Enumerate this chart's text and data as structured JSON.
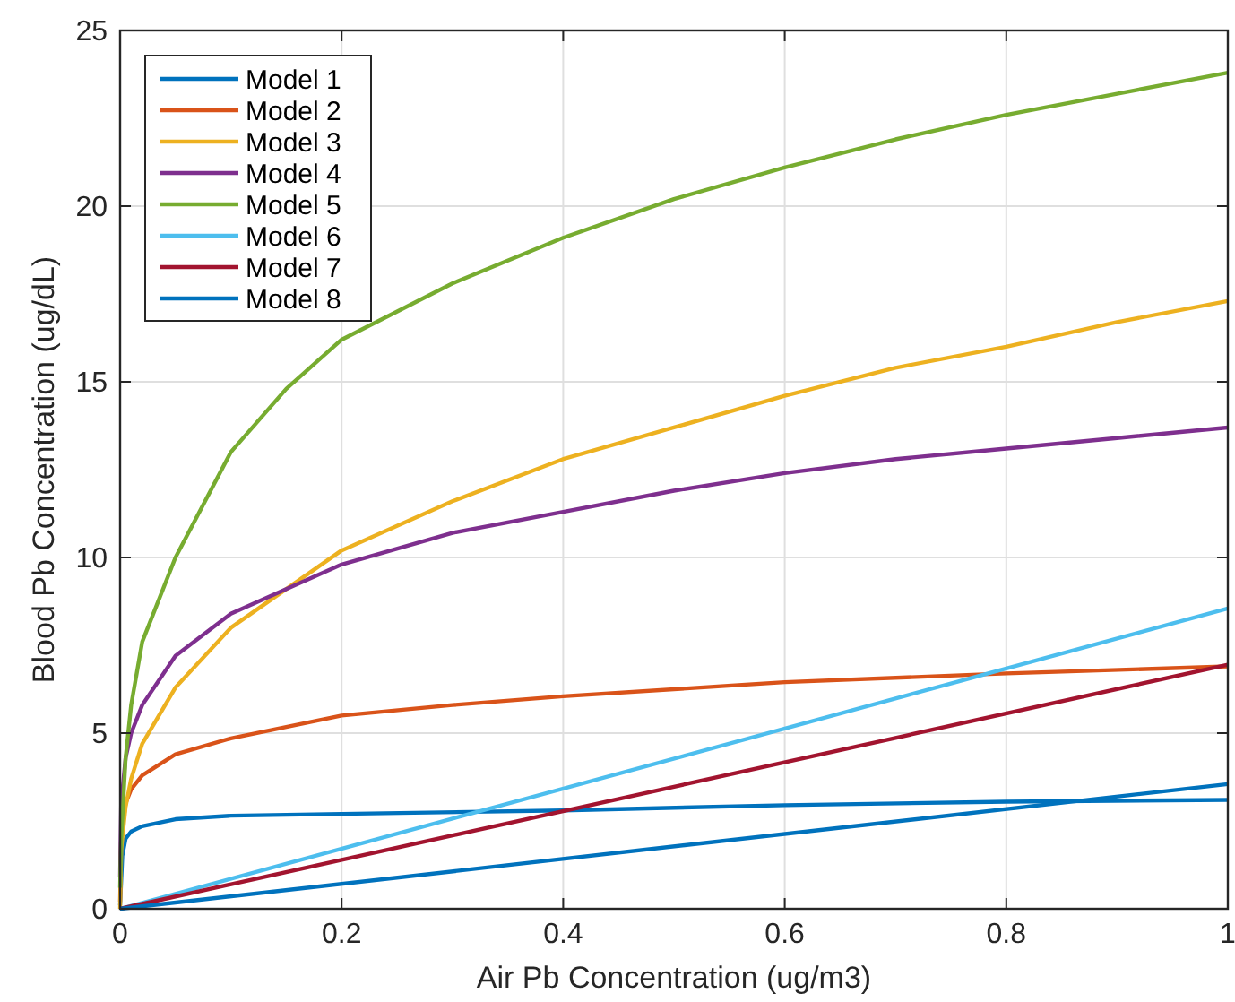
{
  "chart_data": {
    "type": "line",
    "xlabel": "Air Pb Concentration (ug/m3)",
    "ylabel": "Blood Pb Concentration (ug/dL)",
    "xlim": [
      0,
      1
    ],
    "ylim": [
      0,
      25
    ],
    "xticks": [
      0,
      0.2,
      0.4,
      0.6,
      0.8,
      1
    ],
    "yticks": [
      0,
      5,
      10,
      15,
      20,
      25
    ],
    "grid": true,
    "legend": "top left",
    "line_style": "solid",
    "series": [
      {
        "name": "Model 1",
        "color": "#0072bd",
        "x": [
          0,
          0.002,
          0.005,
          0.01,
          0.02,
          0.05,
          0.1,
          0.2,
          0.4,
          0.6,
          0.8,
          1
        ],
        "values": [
          0.1,
          1.5,
          2.0,
          2.2,
          2.35,
          2.55,
          2.65,
          2.7,
          2.8,
          2.95,
          3.05,
          3.1
        ]
      },
      {
        "name": "Model 2",
        "color": "#d95319",
        "x": [
          0,
          0.001,
          0.005,
          0.01,
          0.02,
          0.05,
          0.1,
          0.2,
          0.3,
          0.4,
          0.6,
          0.8,
          1
        ],
        "values": [
          0.2,
          2.0,
          3.0,
          3.4,
          3.8,
          4.4,
          4.85,
          5.5,
          5.8,
          6.05,
          6.45,
          6.7,
          6.9
        ]
      },
      {
        "name": "Model 3",
        "color": "#edb120",
        "x": [
          0,
          0.001,
          0.005,
          0.01,
          0.02,
          0.05,
          0.1,
          0.2,
          0.3,
          0.4,
          0.5,
          0.6,
          0.7,
          0.8,
          0.9,
          1
        ],
        "values": [
          0,
          1.7,
          2.9,
          3.7,
          4.7,
          6.3,
          8.0,
          10.2,
          11.6,
          12.8,
          13.7,
          14.6,
          15.4,
          16.0,
          16.7,
          17.3
        ]
      },
      {
        "name": "Model 4",
        "color": "#7e2f8e",
        "x": [
          0,
          0.001,
          0.005,
          0.01,
          0.02,
          0.05,
          0.1,
          0.2,
          0.3,
          0.4,
          0.5,
          0.6,
          0.7,
          0.8,
          0.9,
          1
        ],
        "values": [
          0.9,
          3.0,
          4.3,
          5.0,
          5.8,
          7.2,
          8.4,
          9.8,
          10.7,
          11.3,
          11.9,
          12.4,
          12.8,
          13.1,
          13.4,
          13.7
        ]
      },
      {
        "name": "Model 5",
        "color": "#77ac30",
        "x": [
          0,
          0.001,
          0.005,
          0.01,
          0.02,
          0.05,
          0.1,
          0.15,
          0.2,
          0.3,
          0.4,
          0.5,
          0.6,
          0.7,
          0.8,
          0.9,
          1
        ],
        "values": [
          0.6,
          2.0,
          4.3,
          5.8,
          7.6,
          10.0,
          13.0,
          14.8,
          16.2,
          17.8,
          19.1,
          20.2,
          21.1,
          21.9,
          22.6,
          23.2,
          23.8
        ]
      },
      {
        "name": "Model 6",
        "color": "#4dbeee",
        "x": [
          0,
          1
        ],
        "values": [
          0,
          8.55
        ]
      },
      {
        "name": "Model 7",
        "color": "#a2142f",
        "x": [
          0,
          1
        ],
        "values": [
          0,
          6.95
        ]
      },
      {
        "name": "Model 8",
        "color": "#0072bd",
        "x": [
          0,
          1
        ],
        "values": [
          0,
          3.55
        ]
      }
    ]
  }
}
